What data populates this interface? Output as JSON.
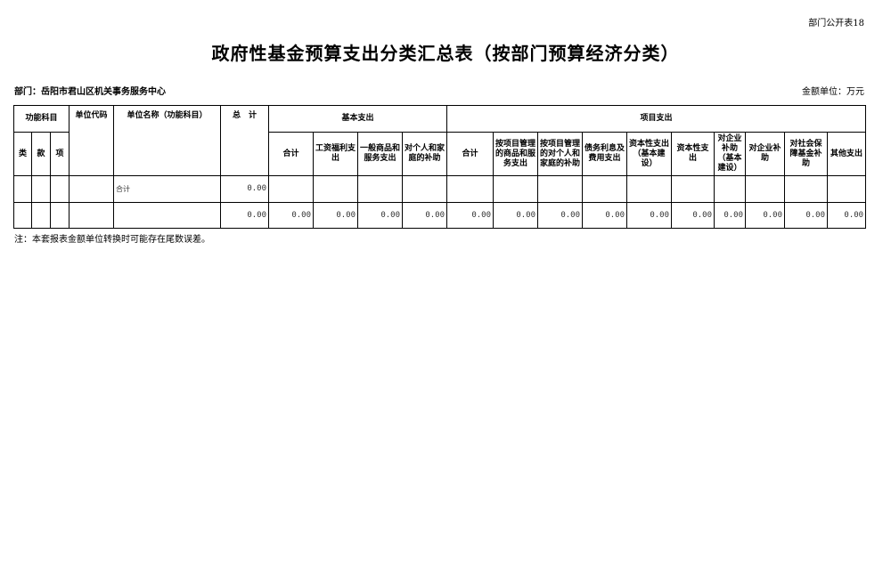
{
  "form_code": "部门公开表18",
  "title": "政府性基金预算支出分类汇总表（按部门预算经济分类）",
  "department": "部门：岳阳市君山区机关事务服务中心",
  "unit": "金额单位：万元",
  "headers": {
    "function_subject": "功能科目",
    "lei": "类",
    "kuan": "款",
    "xiang": "项",
    "unit_code": "单位代码",
    "unit_name": "单位名称（功能科目）",
    "total": "总　计",
    "basic": "基本支出",
    "project": "项目支出",
    "basic_cols": [
      "合计",
      "工资福利支出",
      "一般商品和服务支出",
      "对个人和家庭的补助"
    ],
    "project_cols": [
      "合计",
      "按项目管理的商品和服务支出",
      "按项目管理的对个人和家庭的补助",
      "债务利息及费用支出",
      "资本性支出（基本建设）",
      "资本性支出",
      "对企业补助（基本建设）",
      "对企业补助",
      "对社会保障基金补助",
      "其他支出"
    ]
  },
  "rows": [
    {
      "name": "合计",
      "total": "0.00",
      "values": [
        "",
        "",
        "",
        "",
        "",
        "",
        "",
        "",
        "",
        "",
        "",
        "",
        "",
        ""
      ]
    },
    {
      "name": "",
      "total": "0.00",
      "values": [
        "0.00",
        "0.00",
        "0.00",
        "0.00",
        "0.00",
        "0.00",
        "0.00",
        "0.00",
        "0.00",
        "0.00",
        "0.00",
        "0.00",
        "0.00",
        "0.00"
      ]
    }
  ],
  "note": "注：本套报表金额单位转换时可能存在尾数误差。"
}
